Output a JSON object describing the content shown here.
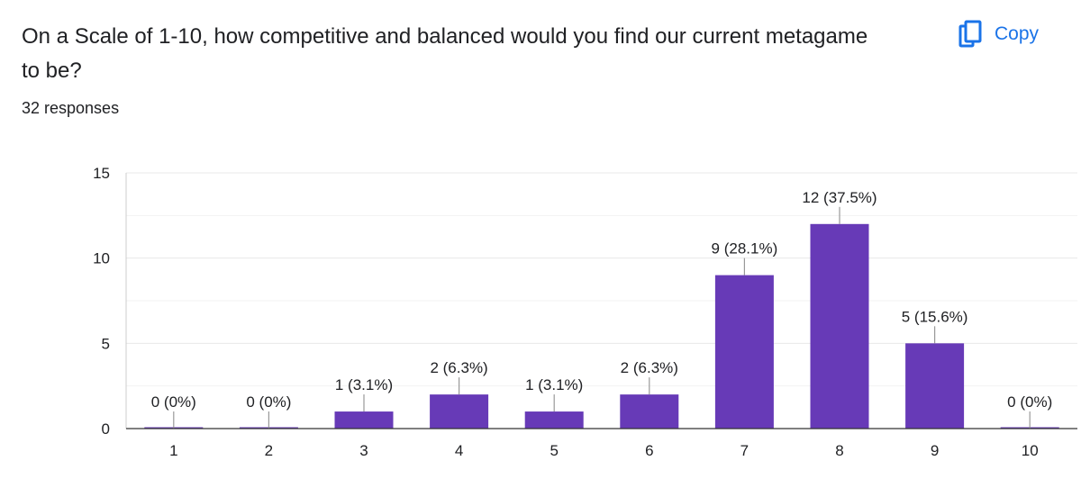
{
  "question": {
    "title": "On a Scale of 1-10, how competitive and balanced would you find our current metagame to be?",
    "responses": "32 responses"
  },
  "toolbar": {
    "copy_label": "Copy",
    "copy_icon": "copy-icon"
  },
  "colors": {
    "bar": "#673ab7",
    "accent": "#1a73e8",
    "grid": "#e8e8e8"
  },
  "chart_data": {
    "type": "bar",
    "categories": [
      "1",
      "2",
      "3",
      "4",
      "5",
      "6",
      "7",
      "8",
      "9",
      "10"
    ],
    "values": [
      0,
      0,
      1,
      2,
      1,
      2,
      9,
      12,
      5,
      0
    ],
    "data_labels": [
      "0 (0%)",
      "0 (0%)",
      "1 (3.1%)",
      "2 (6.3%)",
      "1 (3.1%)",
      "2 (6.3%)",
      "9 (28.1%)",
      "12 (37.5%)",
      "5 (15.6%)",
      "0 (0%)"
    ],
    "y_ticks": [
      0,
      5,
      10,
      15
    ],
    "ylim": [
      0,
      15
    ],
    "grid": true,
    "legend": "none"
  }
}
